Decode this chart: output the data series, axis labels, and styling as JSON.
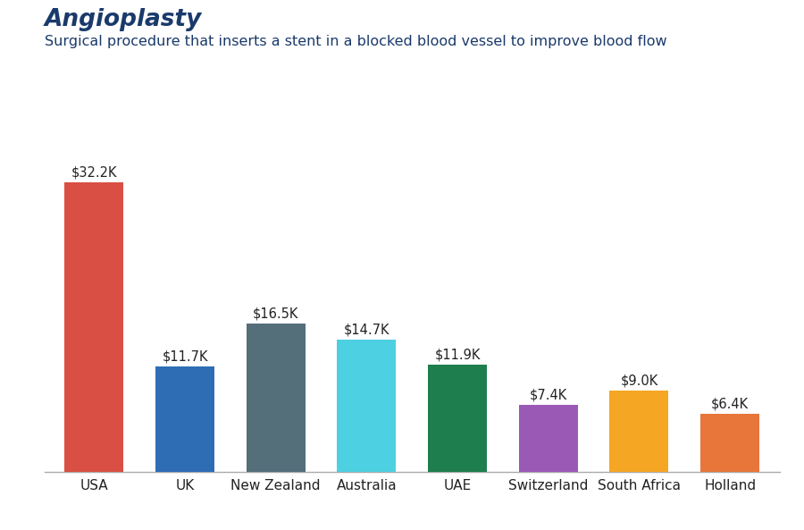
{
  "title": "Angioplasty",
  "subtitle": "Surgical procedure that inserts a stent in a blocked blood vessel to improve blood flow",
  "categories": [
    "USA",
    "UK",
    "New Zealand",
    "Australia",
    "UAE",
    "Switzerland",
    "South Africa",
    "Holland"
  ],
  "values": [
    32200,
    11700,
    16500,
    14700,
    11900,
    7400,
    9000,
    6400
  ],
  "labels": [
    "$32.2K",
    "$11.7K",
    "$16.5K",
    "$14.7K",
    "$11.9K",
    "$7.4K",
    "$9.0K",
    "$6.4K"
  ],
  "bar_colors": [
    "#d94f43",
    "#2e6db4",
    "#546e7a",
    "#4dd0e1",
    "#1e7e4e",
    "#9b59b6",
    "#f5a623",
    "#e8753a"
  ],
  "background_color": "#ffffff",
  "title_color": "#1a3a6b",
  "subtitle_color": "#1a3a6b",
  "label_color": "#222222",
  "axis_label_color": "#222222",
  "ylim": [
    0,
    36000
  ],
  "bar_width": 0.65,
  "title_fontsize": 19,
  "subtitle_fontsize": 11.5,
  "label_fontsize": 10.5,
  "xtick_fontsize": 11
}
